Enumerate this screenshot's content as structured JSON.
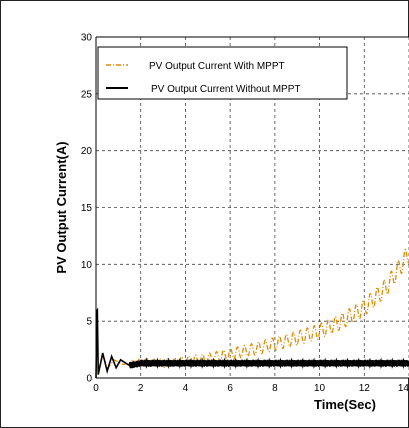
{
  "chart_data": {
    "type": "line",
    "xlabel": "Time(Sec)",
    "ylabel": "PV Output Current(A)",
    "xlim": [
      0,
      14
    ],
    "ylim": [
      0,
      30
    ],
    "x_ticks": [
      "0",
      "2",
      "4",
      "6",
      "8",
      "10",
      "12",
      "14"
    ],
    "y_ticks": [
      "0",
      "5",
      "10",
      "15",
      "20",
      "25",
      "30"
    ],
    "grid": true,
    "legend": {
      "position": "top-left"
    },
    "series": [
      {
        "name": "PV Output Current With MPPT",
        "style": "dash-dot",
        "color": "#e08a00",
        "points": [
          [
            0,
            0
          ],
          [
            0.05,
            5
          ],
          [
            0.1,
            0.5
          ],
          [
            0.3,
            2
          ],
          [
            0.5,
            0.8
          ],
          [
            0.8,
            1.6
          ],
          [
            1.2,
            1.2
          ],
          [
            2,
            1.4
          ],
          [
            3,
            1.3
          ],
          [
            4,
            1.5
          ],
          [
            5,
            1.7
          ],
          [
            6,
            2.1
          ],
          [
            7,
            2.5
          ],
          [
            8,
            3.0
          ],
          [
            9,
            3.5
          ],
          [
            10,
            4.1
          ],
          [
            11,
            5.0
          ],
          [
            12,
            6.2
          ],
          [
            13,
            8.0
          ],
          [
            14,
            11.0
          ]
        ],
        "ripple_amplitude": 0.5
      },
      {
        "name": "PV Output Current Without MPPT",
        "style": "solid",
        "color": "#000000",
        "points": [
          [
            0,
            0
          ],
          [
            0.05,
            7.4
          ],
          [
            0.1,
            0.3
          ],
          [
            0.3,
            2.2
          ],
          [
            0.5,
            0.6
          ],
          [
            0.7,
            1.9
          ],
          [
            0.9,
            0.9
          ],
          [
            1.1,
            1.6
          ],
          [
            1.5,
            1.1
          ],
          [
            2,
            1.3
          ],
          [
            14,
            1.3
          ]
        ],
        "ripple_amplitude": 0.3
      }
    ]
  }
}
